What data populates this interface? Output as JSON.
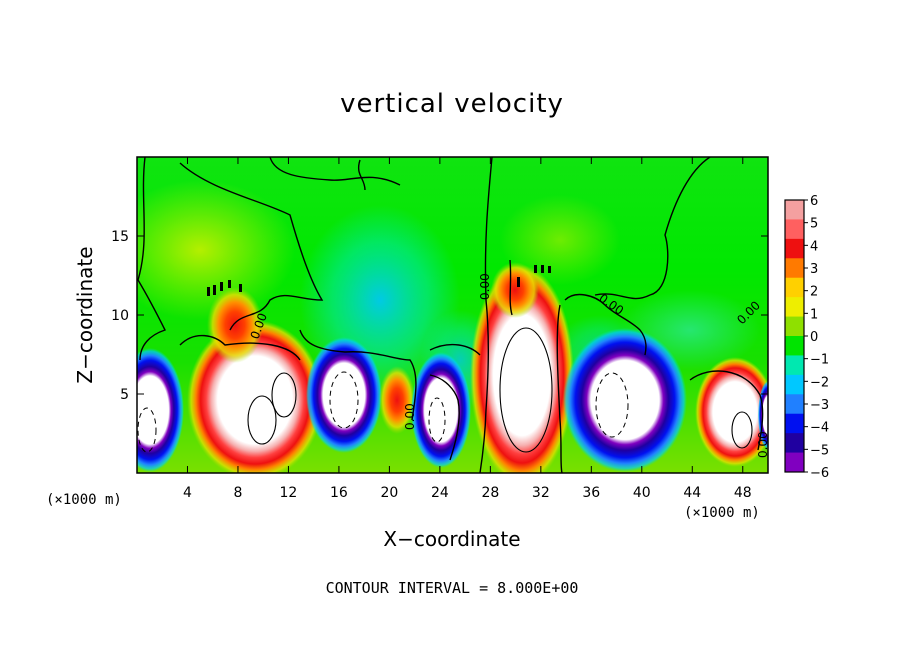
{
  "chart_data": {
    "type": "heatmap",
    "title": "vertical velocity",
    "xlabel": "X−coordinate",
    "ylabel": "Z−coordinate",
    "x_unit_label_left": "(×1000 m)",
    "x_unit_label_right": "(×1000 m)",
    "xlim": [
      0,
      50
    ],
    "ylim": [
      0,
      20
    ],
    "x_ticks": [
      4,
      8,
      12,
      16,
      20,
      24,
      28,
      32,
      36,
      40,
      44,
      48
    ],
    "y_ticks": [
      5,
      10,
      15
    ],
    "grid": false,
    "colorbar": {
      "position": "right",
      "range": [
        -6,
        6
      ],
      "ticks": [
        6,
        5,
        4,
        3,
        2,
        1,
        0,
        -1,
        -2,
        -3,
        -4,
        -5,
        -6
      ],
      "tick_labels": [
        "6",
        "5",
        "4",
        "3",
        "2",
        "1",
        "0",
        "−1",
        "−2",
        "−3",
        "−4",
        "−5",
        "−6"
      ],
      "colors": [
        "#f4a0a0",
        "#ff6060",
        "#ee1010",
        "#ff7a00",
        "#ffd000",
        "#eeee00",
        "#8fe000",
        "#00e400",
        "#00e8b0",
        "#00c8ff",
        "#2080ff",
        "#0010f0",
        "#2000a0",
        "#8000c0"
      ]
    },
    "features": [
      {
        "kind": "downdraft",
        "x": 1.5,
        "z": 3.5,
        "value": -6
      },
      {
        "kind": "updraft",
        "x": 9.5,
        "z": 4.0,
        "value": 6
      },
      {
        "kind": "downdraft",
        "x": 16.5,
        "z": 4.5,
        "value": -6
      },
      {
        "kind": "updraft",
        "x": 20.5,
        "z": 4.0,
        "value": 4
      },
      {
        "kind": "downdraft",
        "x": 24.0,
        "z": 3.5,
        "value": -6
      },
      {
        "kind": "updraft",
        "x": 30.5,
        "z": 6.0,
        "value": 6
      },
      {
        "kind": "downdraft",
        "x": 38.5,
        "z": 4.5,
        "value": -6
      },
      {
        "kind": "updraft",
        "x": 47.0,
        "z": 3.0,
        "value": 6
      }
    ],
    "contour_labels": [
      "0.00",
      "0.00",
      "0.00",
      "0.00",
      "0.00",
      "0.00"
    ],
    "footer": "CONTOUR INTERVAL = 8.000E+00"
  }
}
